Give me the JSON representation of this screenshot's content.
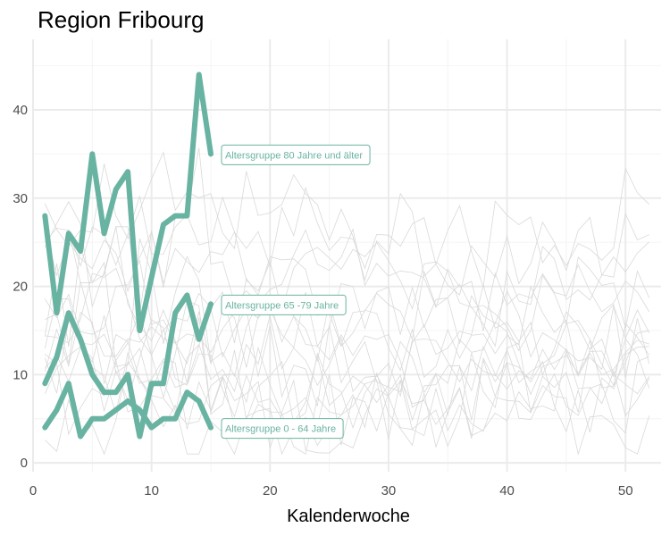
{
  "chart_data": {
    "type": "line",
    "title": "Region Fribourg",
    "xlabel": "Kalenderwoche",
    "ylabel": "",
    "xlim": [
      0,
      53
    ],
    "ylim": [
      -1,
      48
    ],
    "x_ticks": [
      0,
      10,
      20,
      30,
      40,
      50
    ],
    "y_ticks": [
      0,
      10,
      20,
      30,
      40
    ],
    "grid": true,
    "colors": {
      "highlight": "#69b3a2",
      "background_lines": "#d9d9d9",
      "grid_major": "#ebebeb",
      "grid_minor": "#f4f4f4"
    },
    "series": [
      {
        "name": "Altersgruppe 80 Jahre und älter",
        "x": [
          1,
          2,
          3,
          4,
          5,
          6,
          7,
          8,
          9,
          10,
          11,
          12,
          13,
          14,
          15
        ],
        "values": [
          28,
          17,
          26,
          24,
          35,
          26,
          31,
          33,
          15,
          21,
          27,
          28,
          28,
          44,
          35
        ]
      },
      {
        "name": "Altersgruppe 65 -79 Jahre",
        "x": [
          1,
          2,
          3,
          4,
          5,
          6,
          7,
          8,
          9,
          10,
          11,
          12,
          13,
          14,
          15
        ],
        "values": [
          9,
          12,
          17,
          14,
          10,
          8,
          8,
          10,
          3,
          9,
          9,
          17,
          19,
          14,
          18
        ]
      },
      {
        "name": "Altersgruppe 0 - 64 Jahre",
        "x": [
          1,
          2,
          3,
          4,
          5,
          6,
          7,
          8,
          9,
          10,
          11,
          12,
          13,
          14,
          15
        ],
        "values": [
          4,
          6,
          9,
          3,
          5,
          5,
          6,
          7,
          6,
          4,
          5,
          5,
          8,
          7,
          4
        ]
      }
    ]
  }
}
